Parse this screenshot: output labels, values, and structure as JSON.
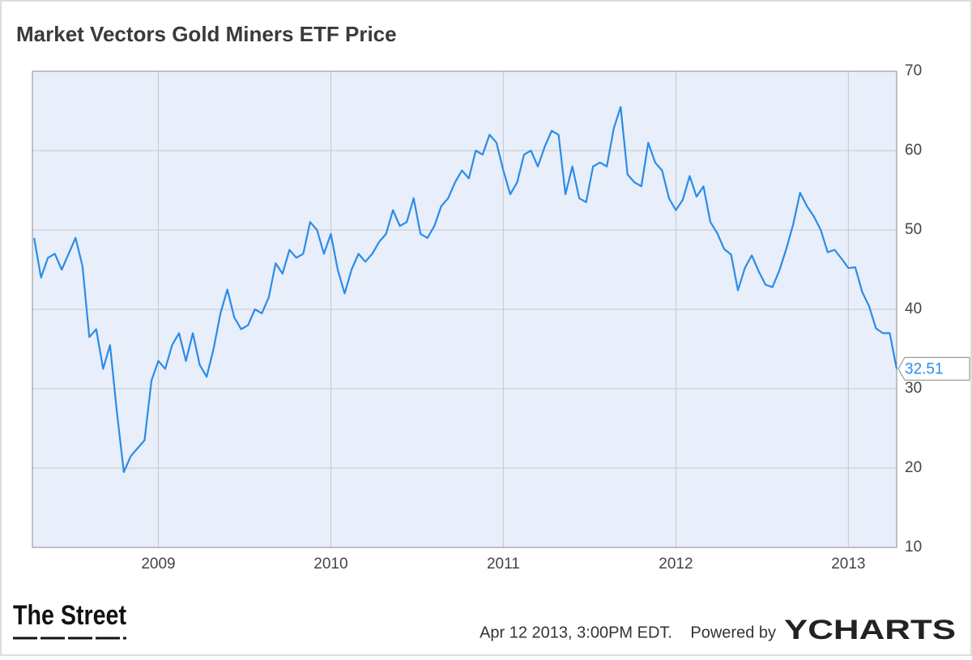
{
  "chart_data": {
    "type": "line",
    "title": "Market Vectors Gold Miners ETF Price",
    "x": [
      2008.28,
      2008.32,
      2008.36,
      2008.4,
      2008.44,
      2008.48,
      2008.52,
      2008.56,
      2008.6,
      2008.64,
      2008.68,
      2008.72,
      2008.76,
      2008.8,
      2008.84,
      2008.88,
      2008.92,
      2008.96,
      2009.0,
      2009.04,
      2009.08,
      2009.12,
      2009.16,
      2009.2,
      2009.24,
      2009.28,
      2009.32,
      2009.36,
      2009.4,
      2009.44,
      2009.48,
      2009.52,
      2009.56,
      2009.6,
      2009.64,
      2009.68,
      2009.72,
      2009.76,
      2009.8,
      2009.84,
      2009.88,
      2009.92,
      2009.96,
      2010.0,
      2010.04,
      2010.08,
      2010.12,
      2010.16,
      2010.2,
      2010.24,
      2010.28,
      2010.32,
      2010.36,
      2010.4,
      2010.44,
      2010.48,
      2010.52,
      2010.56,
      2010.6,
      2010.64,
      2010.68,
      2010.72,
      2010.76,
      2010.8,
      2010.84,
      2010.88,
      2010.92,
      2010.96,
      2011.0,
      2011.04,
      2011.08,
      2011.12,
      2011.16,
      2011.2,
      2011.24,
      2011.28,
      2011.32,
      2011.36,
      2011.4,
      2011.44,
      2011.48,
      2011.52,
      2011.56,
      2011.6,
      2011.64,
      2011.68,
      2011.72,
      2011.76,
      2011.8,
      2011.84,
      2011.88,
      2011.92,
      2011.96,
      2012.0,
      2012.04,
      2012.08,
      2012.12,
      2012.16,
      2012.2,
      2012.24,
      2012.28,
      2012.32,
      2012.36,
      2012.4,
      2012.44,
      2012.48,
      2012.52,
      2012.56,
      2012.6,
      2012.64,
      2012.68,
      2012.72,
      2012.76,
      2012.8,
      2012.84,
      2012.88,
      2012.92,
      2012.96,
      2013.0,
      2013.04,
      2013.08,
      2013.12,
      2013.16,
      2013.2,
      2013.24,
      2013.28
    ],
    "series": [
      {
        "color": "#2a8ce8",
        "values": [
          49,
          44,
          46.5,
          47,
          45,
          47,
          49,
          45.5,
          36.5,
          37.5,
          32.5,
          35.5,
          27,
          19.5,
          21.5,
          22.5,
          23.5,
          31,
          33.5,
          32.5,
          35.5,
          37,
          33.5,
          37,
          33,
          31.5,
          35,
          39.5,
          42.5,
          39,
          37.5,
          38,
          40,
          39.5,
          41.5,
          45.8,
          44.5,
          47.5,
          46.5,
          47,
          51,
          50,
          47,
          49.5,
          45,
          42,
          45,
          47,
          46,
          47,
          48.5,
          49.5,
          52.5,
          50.5,
          51,
          54,
          49.5,
          49,
          50.5,
          53,
          54,
          56,
          57.5,
          56.5,
          60,
          59.5,
          62,
          61,
          57.5,
          54.5,
          56,
          59.5,
          60,
          58,
          60.5,
          62.5,
          62,
          54.5,
          58,
          54,
          53.5,
          58,
          58.5,
          58,
          62.8,
          65.5,
          57,
          56,
          55.5,
          61,
          58.5,
          57.5,
          54,
          52.5,
          53.8,
          56.8,
          54.2,
          55.5,
          51,
          49.6,
          47.6,
          46.9,
          42.4,
          45.2,
          46.8,
          44.8,
          43.1,
          42.8,
          44.9,
          47.6,
          50.7,
          54.7,
          53,
          51.7,
          50,
          47.2,
          47.5,
          46.4,
          45.2,
          45.3,
          42.2,
          40.4,
          37.6,
          37,
          37,
          32.51
        ]
      }
    ],
    "xlim": [
      2008.27,
      2013.28
    ],
    "xticks": [
      2009,
      2010,
      2011,
      2012,
      2013
    ],
    "ylim": [
      10,
      70
    ],
    "yticks": [
      10,
      20,
      30,
      40,
      50,
      60,
      70
    ],
    "grid": true,
    "footer": {
      "logo": "The Street",
      "timestamp": "Apr 12 2013, 3:00PM EDT.",
      "powered_by": "Powered by",
      "brand": "YCHARTS"
    }
  }
}
